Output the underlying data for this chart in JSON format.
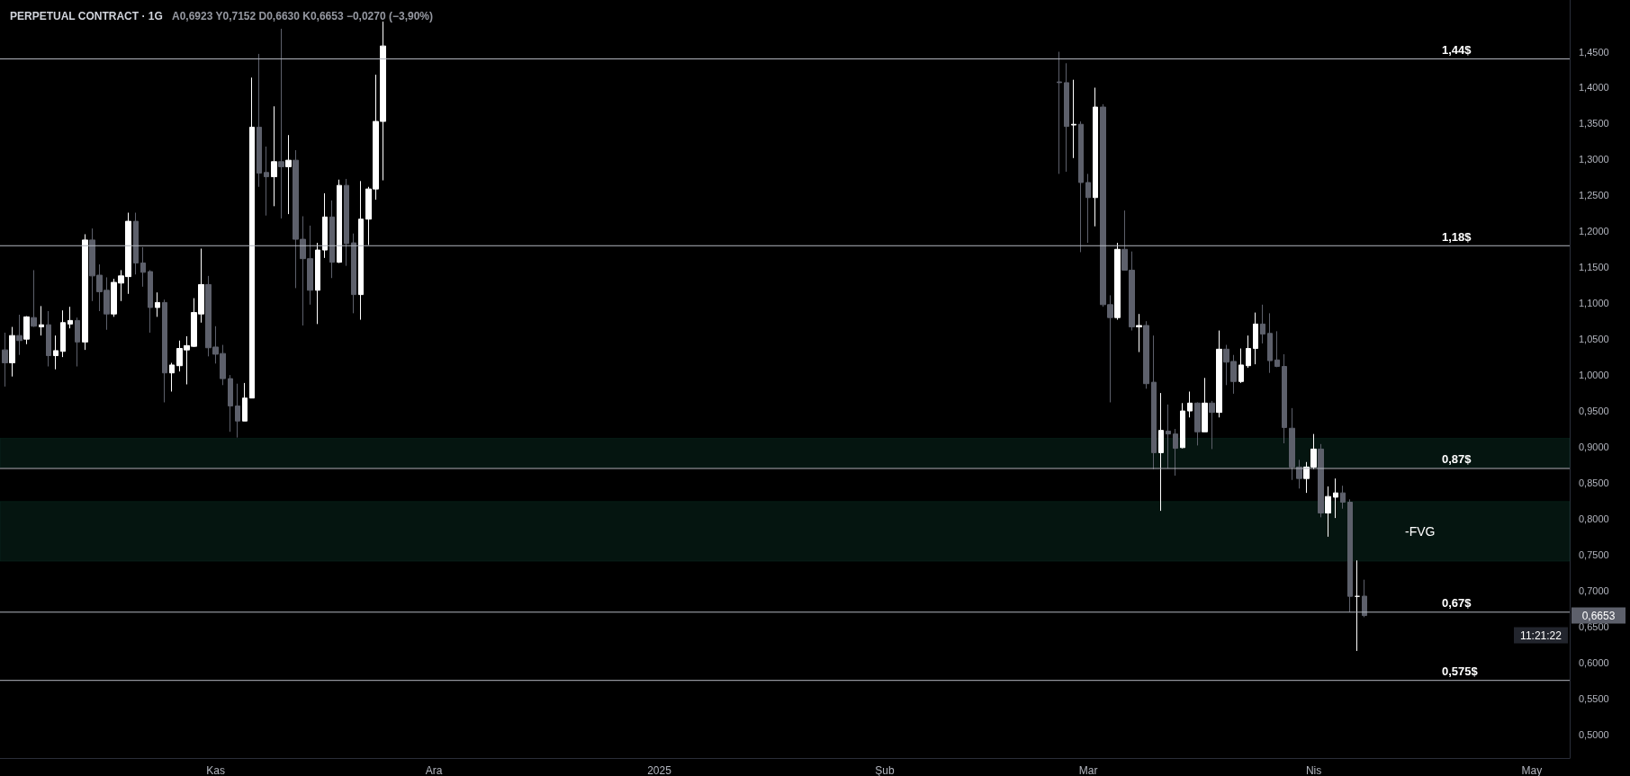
{
  "chart_data": {
    "type": "candlestick",
    "title": "PERPETUAL CONTRACT · 1G",
    "subtitle": "A0,6923 Y0,7152 D0,6630 K0,6653 −0,0270 (−3,90%)",
    "x": [
      "2024-10-03",
      "2024-10-04",
      "2024-10-05",
      "2024-10-06",
      "2024-10-07",
      "2024-10-08",
      "2024-10-09",
      "2024-10-10",
      "2024-10-11",
      "2024-10-12",
      "2024-10-13",
      "2024-10-14",
      "2024-10-15",
      "2024-10-16",
      "2024-10-17",
      "2024-10-18",
      "2024-10-19",
      "2024-10-20",
      "2024-10-21",
      "2024-10-22",
      "2024-10-23",
      "2024-10-24",
      "2024-10-25",
      "2024-10-26",
      "2024-10-27",
      "2024-10-28",
      "2024-10-29",
      "2024-10-30",
      "2024-10-31",
      "2024-11-01",
      "2024-11-02",
      "2024-11-03",
      "2024-11-04",
      "2024-11-05",
      "2024-11-06",
      "2024-11-07",
      "2024-11-08",
      "2024-11-09",
      "2024-11-10",
      "2024-11-11",
      "2024-11-12",
      "2024-11-13",
      "2024-11-14",
      "2024-11-15",
      "2024-11-16",
      "2024-11-17",
      "2024-11-18",
      "2024-11-19",
      "2024-11-20",
      "2024-11-21",
      "2024-11-22",
      "2024-11-23",
      "2024-11-24",
      "2025-02-25",
      "2025-02-26",
      "2025-02-27",
      "2025-02-28",
      "2025-03-01",
      "2025-03-02",
      "2025-03-03",
      "2025-03-04",
      "2025-03-05",
      "2025-03-06",
      "2025-03-07",
      "2025-03-08",
      "2025-03-09",
      "2025-03-10",
      "2025-03-11",
      "2025-03-12",
      "2025-03-13",
      "2025-03-14",
      "2025-03-15",
      "2025-03-16",
      "2025-03-17",
      "2025-03-18",
      "2025-03-19",
      "2025-03-20",
      "2025-03-21",
      "2025-03-22",
      "2025-03-23",
      "2025-03-24",
      "2025-03-25",
      "2025-03-26",
      "2025-03-27",
      "2025-03-28",
      "2025-03-29",
      "2025-03-30",
      "2025-03-31",
      "2025-04-01",
      "2025-04-02",
      "2025-04-03",
      "2025-04-04",
      "2025-04-05",
      "2025-04-06",
      "2025-04-07",
      "2025-04-08"
    ],
    "ohlc": [
      [
        1.035,
        1.059,
        0.984,
        1.017
      ],
      [
        1.017,
        1.067,
        0.998,
        1.055
      ],
      [
        1.055,
        1.084,
        1.028,
        1.048
      ],
      [
        1.05,
        1.082,
        1.043,
        1.081
      ],
      [
        1.08,
        1.146,
        1.067,
        1.068
      ],
      [
        1.067,
        1.096,
        1.055,
        1.07
      ],
      [
        1.07,
        1.089,
        1.012,
        1.027
      ],
      [
        1.027,
        1.055,
        1.008,
        1.034
      ],
      [
        1.033,
        1.09,
        1.025,
        1.073
      ],
      [
        1.071,
        1.095,
        1.065,
        1.076
      ],
      [
        1.076,
        1.08,
        1.012,
        1.046
      ],
      [
        1.046,
        1.196,
        1.035,
        1.188
      ],
      [
        1.188,
        1.204,
        1.103,
        1.138
      ],
      [
        1.139,
        1.154,
        1.089,
        1.116
      ],
      [
        1.118,
        1.136,
        1.063,
        1.085
      ],
      [
        1.085,
        1.134,
        1.081,
        1.129
      ],
      [
        1.128,
        1.146,
        1.103,
        1.138
      ],
      [
        1.137,
        1.226,
        1.113,
        1.214
      ],
      [
        1.214,
        1.226,
        1.14,
        1.156
      ],
      [
        1.156,
        1.178,
        1.123,
        1.143
      ],
      [
        1.144,
        1.146,
        1.059,
        1.094
      ],
      [
        1.094,
        1.115,
        1.081,
        1.101
      ],
      [
        1.101,
        1.105,
        0.962,
        1.003
      ],
      [
        1.003,
        1.017,
        0.977,
        1.014
      ],
      [
        1.013,
        1.048,
        1.005,
        1.037
      ],
      [
        1.035,
        1.054,
        0.987,
        1.041
      ],
      [
        1.04,
        1.107,
        1.039,
        1.087
      ],
      [
        1.085,
        1.176,
        1.073,
        1.126
      ],
      [
        1.126,
        1.138,
        1.026,
        1.038
      ],
      [
        1.039,
        1.068,
        1.016,
        1.029
      ],
      [
        1.03,
        1.042,
        0.986,
        0.995
      ],
      [
        0.995,
        1.0,
        0.921,
        0.957
      ],
      [
        0.957,
        0.988,
        0.913,
        0.936
      ],
      [
        0.936,
        0.989,
        0.936,
        0.968
      ],
      [
        0.968,
        1.414,
        0.968,
        1.345
      ],
      [
        1.345,
        1.447,
        1.262,
        1.281
      ],
      [
        1.282,
        1.318,
        1.222,
        1.276
      ],
      [
        1.276,
        1.374,
        1.235,
        1.297
      ],
      [
        1.297,
        1.482,
        1.218,
        1.29
      ],
      [
        1.29,
        1.334,
        1.224,
        1.299
      ],
      [
        1.299,
        1.313,
        1.121,
        1.189
      ],
      [
        1.189,
        1.221,
        1.069,
        1.162
      ],
      [
        1.162,
        1.208,
        1.098,
        1.118
      ],
      [
        1.118,
        1.184,
        1.071,
        1.174
      ],
      [
        1.174,
        1.253,
        1.163,
        1.22
      ],
      [
        1.22,
        1.243,
        1.135,
        1.157
      ],
      [
        1.157,
        1.272,
        1.156,
        1.264
      ],
      [
        1.264,
        1.273,
        1.152,
        1.183
      ],
      [
        1.184,
        1.197,
        1.086,
        1.112
      ],
      [
        1.112,
        1.27,
        1.077,
        1.217
      ],
      [
        1.217,
        1.262,
        1.181,
        1.259
      ],
      [
        1.259,
        1.418,
        1.244,
        1.353
      ],
      [
        1.353,
        1.492,
        1.271,
        1.458
      ],
      [
        1.408,
        1.45,
        1.28,
        1.407
      ],
      [
        1.407,
        1.434,
        1.283,
        1.346
      ],
      [
        1.348,
        1.411,
        1.302,
        1.349
      ],
      [
        1.349,
        1.353,
        1.171,
        1.268
      ],
      [
        1.268,
        1.28,
        1.184,
        1.247
      ],
      [
        1.247,
        1.4,
        1.207,
        1.373
      ],
      [
        1.373,
        1.377,
        1.095,
        1.098
      ],
      [
        1.098,
        1.111,
        0.962,
        1.08
      ],
      [
        1.08,
        1.184,
        1.077,
        1.175
      ],
      [
        1.175,
        1.229,
        1.146,
        1.146
      ],
      [
        1.146,
        1.172,
        1.062,
        1.067
      ],
      [
        1.067,
        1.085,
        1.032,
        1.069
      ],
      [
        1.069,
        1.075,
        0.981,
        0.988
      ],
      [
        0.99,
        1.055,
        0.869,
        0.892
      ],
      [
        0.892,
        0.975,
        0.811,
        0.923
      ],
      [
        0.922,
        0.959,
        0.87,
        0.918
      ],
      [
        0.918,
        0.925,
        0.86,
        0.898
      ],
      [
        0.899,
        0.961,
        0.898,
        0.95
      ],
      [
        0.95,
        0.977,
        0.941,
        0.961
      ],
      [
        0.961,
        0.962,
        0.902,
        0.921
      ],
      [
        0.921,
        0.996,
        0.921,
        0.961
      ],
      [
        0.961,
        0.964,
        0.897,
        0.948
      ],
      [
        0.948,
        1.062,
        0.941,
        1.036
      ],
      [
        1.036,
        1.042,
        0.986,
        1.018
      ],
      [
        1.019,
        1.028,
        0.974,
        0.991
      ],
      [
        0.991,
        1.037,
        0.989,
        1.014
      ],
      [
        1.013,
        1.055,
        1.01,
        1.037
      ],
      [
        1.037,
        1.087,
        1.015,
        1.071
      ],
      [
        1.071,
        1.098,
        1.044,
        1.057
      ],
      [
        1.058,
        1.086,
        1.003,
        1.02
      ],
      [
        1.021,
        1.061,
        1.011,
        1.012
      ],
      [
        1.012,
        1.029,
        0.905,
        0.927
      ],
      [
        0.926,
        0.954,
        0.854,
        0.872
      ],
      [
        0.872,
        0.882,
        0.842,
        0.856
      ],
      [
        0.856,
        0.879,
        0.836,
        0.872
      ],
      [
        0.872,
        0.918,
        0.869,
        0.897
      ],
      [
        0.897,
        0.904,
        0.802,
        0.808
      ],
      [
        0.808,
        0.845,
        0.775,
        0.831
      ],
      [
        0.83,
        0.856,
        0.801,
        0.836
      ],
      [
        0.836,
        0.846,
        0.814,
        0.823
      ],
      [
        0.823,
        0.827,
        0.67,
        0.692
      ],
      [
        0.692,
        0.742,
        0.616,
        0.692
      ],
      [
        0.6923,
        0.7152,
        0.663,
        0.6653
      ]
    ],
    "xlim": [
      "2024-10-02T08:00",
      "2025-05-06T05:00"
    ],
    "xticks": [
      {
        "value": "2024-11-01",
        "label": "Kas"
      },
      {
        "value": "2024-12-01",
        "label": "Ara"
      },
      {
        "value": "2025-01-01",
        "label": "2025"
      },
      {
        "value": "2025-02-01",
        "label": "Şub"
      },
      {
        "value": "2025-03-01",
        "label": "Mar"
      },
      {
        "value": "2025-04-01",
        "label": "Nis"
      },
      {
        "value": "2025-05-01",
        "label": "May"
      }
    ],
    "ylim": [
      0.467,
      1.522
    ],
    "yticks": [
      {
        "value": 0.5,
        "label": "0,5000"
      },
      {
        "value": 0.55,
        "label": "0,5500"
      },
      {
        "value": 0.6,
        "label": "0,6000"
      },
      {
        "value": 0.65,
        "label": "0,6500"
      },
      {
        "value": 0.7,
        "label": "0,7000"
      },
      {
        "value": 0.75,
        "label": "0,7500"
      },
      {
        "value": 0.8,
        "label": "0,8000"
      },
      {
        "value": 0.85,
        "label": "0,8500"
      },
      {
        "value": 0.9,
        "label": "0,9000"
      },
      {
        "value": 0.95,
        "label": "0,9500"
      },
      {
        "value": 1.0,
        "label": "1,0000"
      },
      {
        "value": 1.05,
        "label": "1,0500"
      },
      {
        "value": 1.1,
        "label": "1,1000"
      },
      {
        "value": 1.15,
        "label": "1,1500"
      },
      {
        "value": 1.2,
        "label": "1,2000"
      },
      {
        "value": 1.25,
        "label": "1,2500"
      },
      {
        "value": 1.3,
        "label": "1,3000"
      },
      {
        "value": 1.35,
        "label": "1,3500"
      },
      {
        "value": 1.4,
        "label": "1,4000"
      },
      {
        "value": 1.45,
        "label": "1,4500"
      }
    ],
    "ref_lines": [
      {
        "axis": "y",
        "value": 1.44,
        "label": "1,44$",
        "color": "#b2b5be"
      },
      {
        "axis": "y",
        "value": 1.18,
        "label": "1,18$",
        "color": "#b2b5be"
      },
      {
        "axis": "y",
        "value": 0.87,
        "label": "0,87$",
        "color": "#b2b5be"
      },
      {
        "axis": "y",
        "value": 0.67,
        "label": "0,67$",
        "color": "#b2b5be"
      },
      {
        "axis": "y",
        "value": 0.575,
        "label": "0,575$",
        "color": "#b2b5be"
      }
    ],
    "bands": [
      {
        "axis": "y",
        "from": 0.872,
        "to": 0.912,
        "color": "#0f3d2e"
      },
      {
        "axis": "y",
        "from": 0.741,
        "to": 0.824,
        "color": "#0f3d2e",
        "label": "-FVG"
      }
    ],
    "annotations": [
      "0,6653",
      "11:21:22"
    ],
    "grid": false
  }
}
